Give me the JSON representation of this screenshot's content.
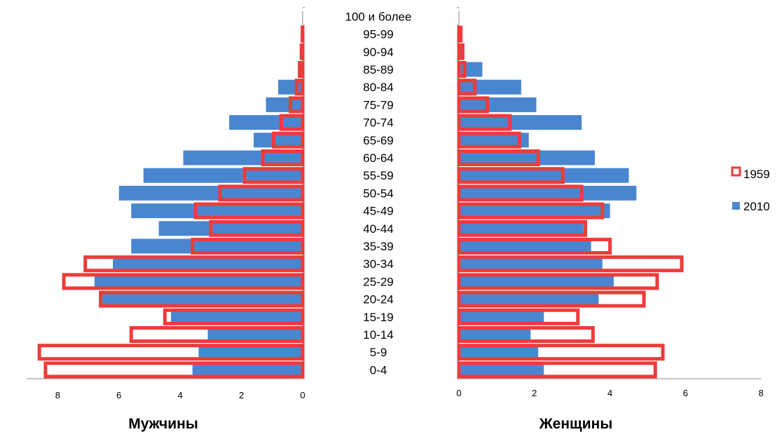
{
  "chart_data": {
    "type": "bar",
    "subtype": "population-pyramid",
    "categories": [
      "0-4",
      "5-9",
      "10-14",
      "15-19",
      "20-24",
      "25-29",
      "30-34",
      "35-39",
      "40-44",
      "45-49",
      "50-54",
      "55-59",
      "60-64",
      "65-69",
      "70-74",
      "75-79",
      "80-84",
      "85-89",
      "90-94",
      "95-99",
      "100 и более"
    ],
    "panels": [
      {
        "title": "Мужчины",
        "xlim": [
          0,
          9
        ],
        "xticks": [
          "8",
          "6",
          "4",
          "2",
          "0"
        ],
        "direction": "left",
        "series": [
          {
            "name": "2010",
            "values": [
              3.6,
              3.4,
              3.1,
              4.3,
              6.6,
              6.8,
              6.2,
              5.6,
              4.7,
              5.6,
              6.0,
              5.2,
              3.9,
              1.6,
              2.4,
              1.2,
              0.8,
              0.1,
              0.04,
              0.01,
              0.0
            ]
          },
          {
            "name": "1959",
            "values": [
              8.4,
              8.6,
              5.6,
              4.5,
              6.6,
              7.8,
              7.1,
              3.6,
              3.0,
              3.5,
              2.7,
              1.9,
              1.3,
              0.95,
              0.7,
              0.4,
              0.2,
              0.1,
              0.04,
              0.01,
              0.0
            ]
          }
        ]
      },
      {
        "title": "Женщины",
        "xlim": [
          0,
          8
        ],
        "xticks": [
          "0",
          "2",
          "4",
          "6",
          "8"
        ],
        "direction": "right",
        "series": [
          {
            "name": "2010",
            "values": [
              2.25,
              2.1,
              1.9,
              2.25,
              3.7,
              4.1,
              3.8,
              3.5,
              3.3,
              4.0,
              4.7,
              4.5,
              3.6,
              1.85,
              3.25,
              2.05,
              1.65,
              0.62,
              0.1,
              0.05,
              0.0
            ]
          },
          {
            "name": "1959",
            "values": [
              5.2,
              5.4,
              3.55,
              3.15,
              4.9,
              5.25,
              5.9,
              4.0,
              3.35,
              3.8,
              3.25,
              2.75,
              2.1,
              1.6,
              1.35,
              0.75,
              0.42,
              0.15,
              0.1,
              0.05,
              0.0
            ]
          }
        ]
      }
    ],
    "legend": {
      "position": "right",
      "items": [
        {
          "name": "1959",
          "style": "outline"
        },
        {
          "name": "2010",
          "style": "filled"
        }
      ]
    },
    "colors": {
      "s2010": "#4a86d0",
      "s1959": "#ee3b3b"
    }
  }
}
